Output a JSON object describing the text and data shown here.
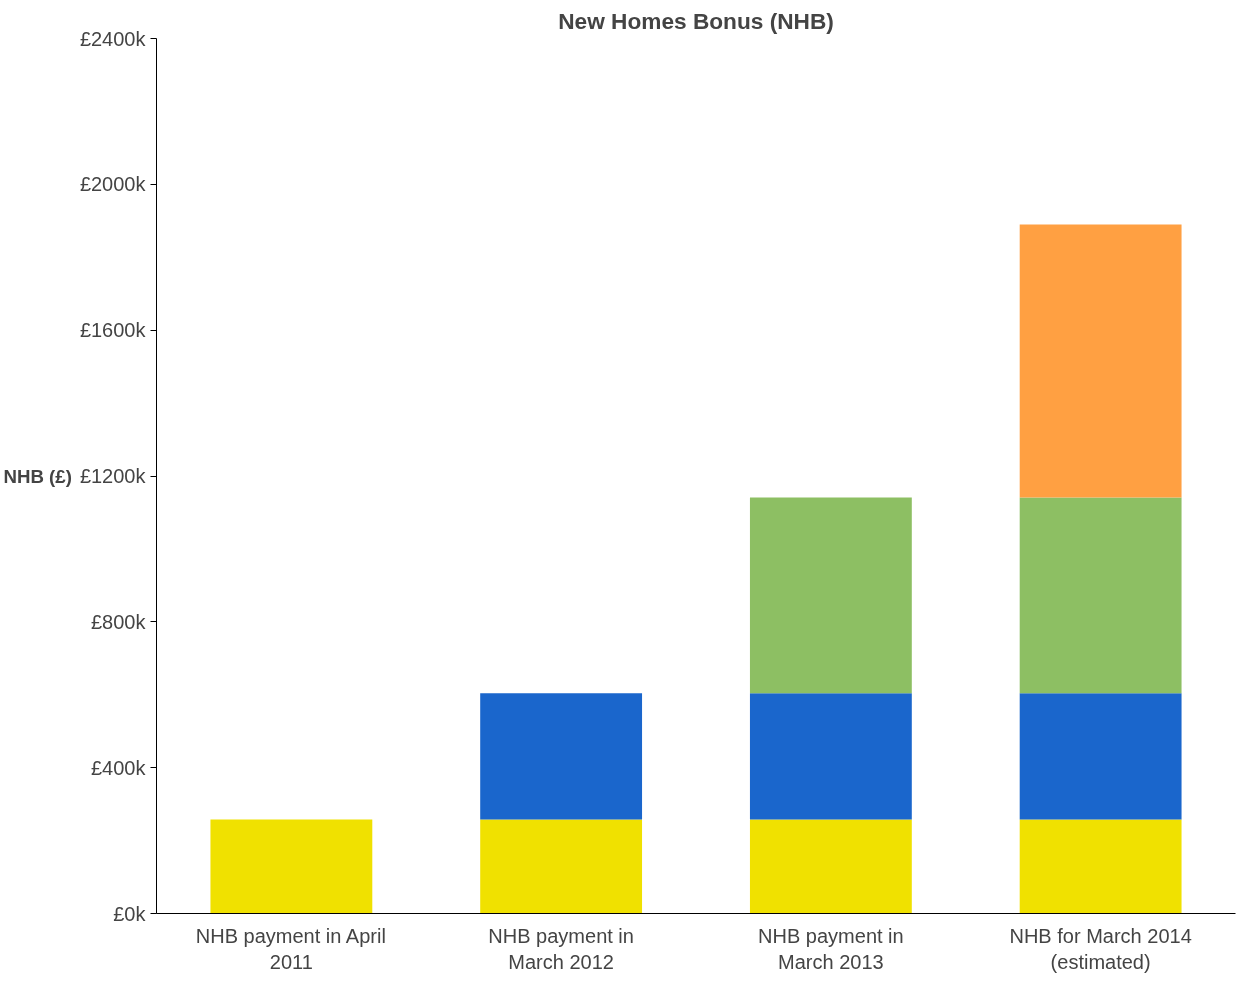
{
  "chart_data": {
    "type": "bar",
    "title": "New Homes Bonus (NHB)",
    "ylabel": "NHB (£)",
    "stacked": true,
    "categories": [
      "NHB payment in April\n2011",
      "NHB payment in\nMarch 2012",
      "NHB payment in\nMarch 2013",
      "NHB for March 2014\n(estimated)"
    ],
    "series": [
      {
        "color": "#f0e100",
        "values": [
          258,
          258,
          258,
          258
        ]
      },
      {
        "color": "#1a66cc",
        "values": [
          null,
          346,
          346,
          346
        ]
      },
      {
        "color": "#8dbf63",
        "values": [
          null,
          null,
          537,
          537
        ]
      },
      {
        "color": "#ffa042",
        "values": [
          null,
          null,
          null,
          749
        ]
      }
    ],
    "ylim": [
      0,
      2400
    ],
    "yticks": [
      {
        "value": 0,
        "label": "£0k"
      },
      {
        "value": 400,
        "label": "£400k"
      },
      {
        "value": 800,
        "label": "£800k"
      },
      {
        "value": 1200,
        "label": "£1200k"
      },
      {
        "value": 1600,
        "label": "£1600k"
      },
      {
        "value": 2000,
        "label": "£2000k"
      },
      {
        "value": 2400,
        "label": "£2400k"
      }
    ],
    "grid": false
  }
}
